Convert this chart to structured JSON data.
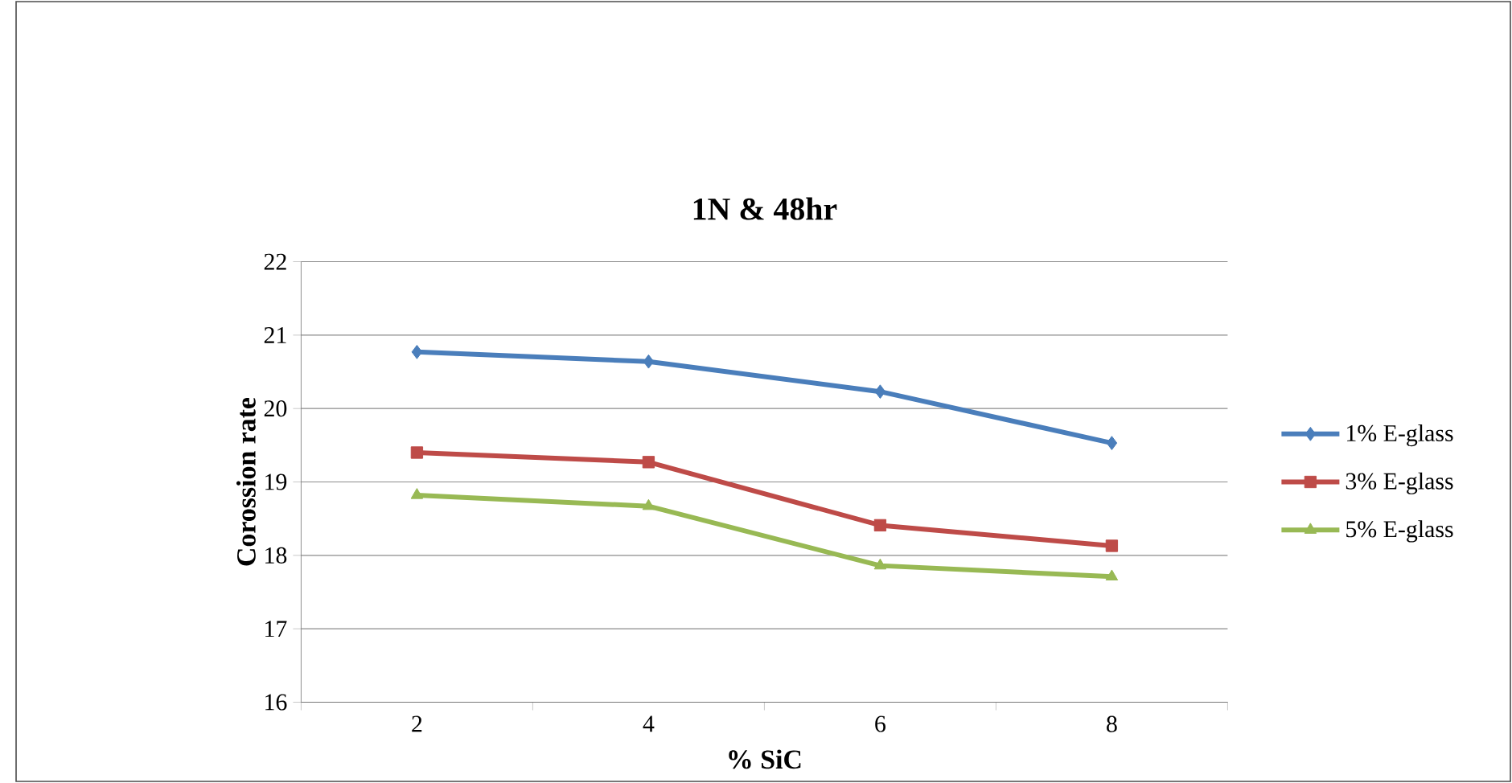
{
  "chart_data": {
    "type": "line",
    "title": "1N & 48hr",
    "xlabel": "% SiC",
    "ylabel": "Corossion rate",
    "categories": [
      "2",
      "4",
      "6",
      "8"
    ],
    "ylim": [
      16,
      22
    ],
    "yticks": [
      16,
      17,
      18,
      19,
      20,
      21,
      22
    ],
    "grid": "y",
    "legend": "right",
    "line_style": "solid",
    "series": [
      {
        "name": "1% E-glass",
        "color": "#4a7ebb",
        "marker": "diamond",
        "values": [
          20.77,
          20.64,
          20.23,
          19.53
        ]
      },
      {
        "name": "3% E-glass",
        "color": "#be4b48",
        "marker": "square",
        "values": [
          19.4,
          19.27,
          18.41,
          18.13
        ]
      },
      {
        "name": "5% E-glass",
        "color": "#98b954",
        "marker": "triangle",
        "values": [
          18.82,
          18.67,
          17.86,
          17.71
        ]
      }
    ]
  }
}
